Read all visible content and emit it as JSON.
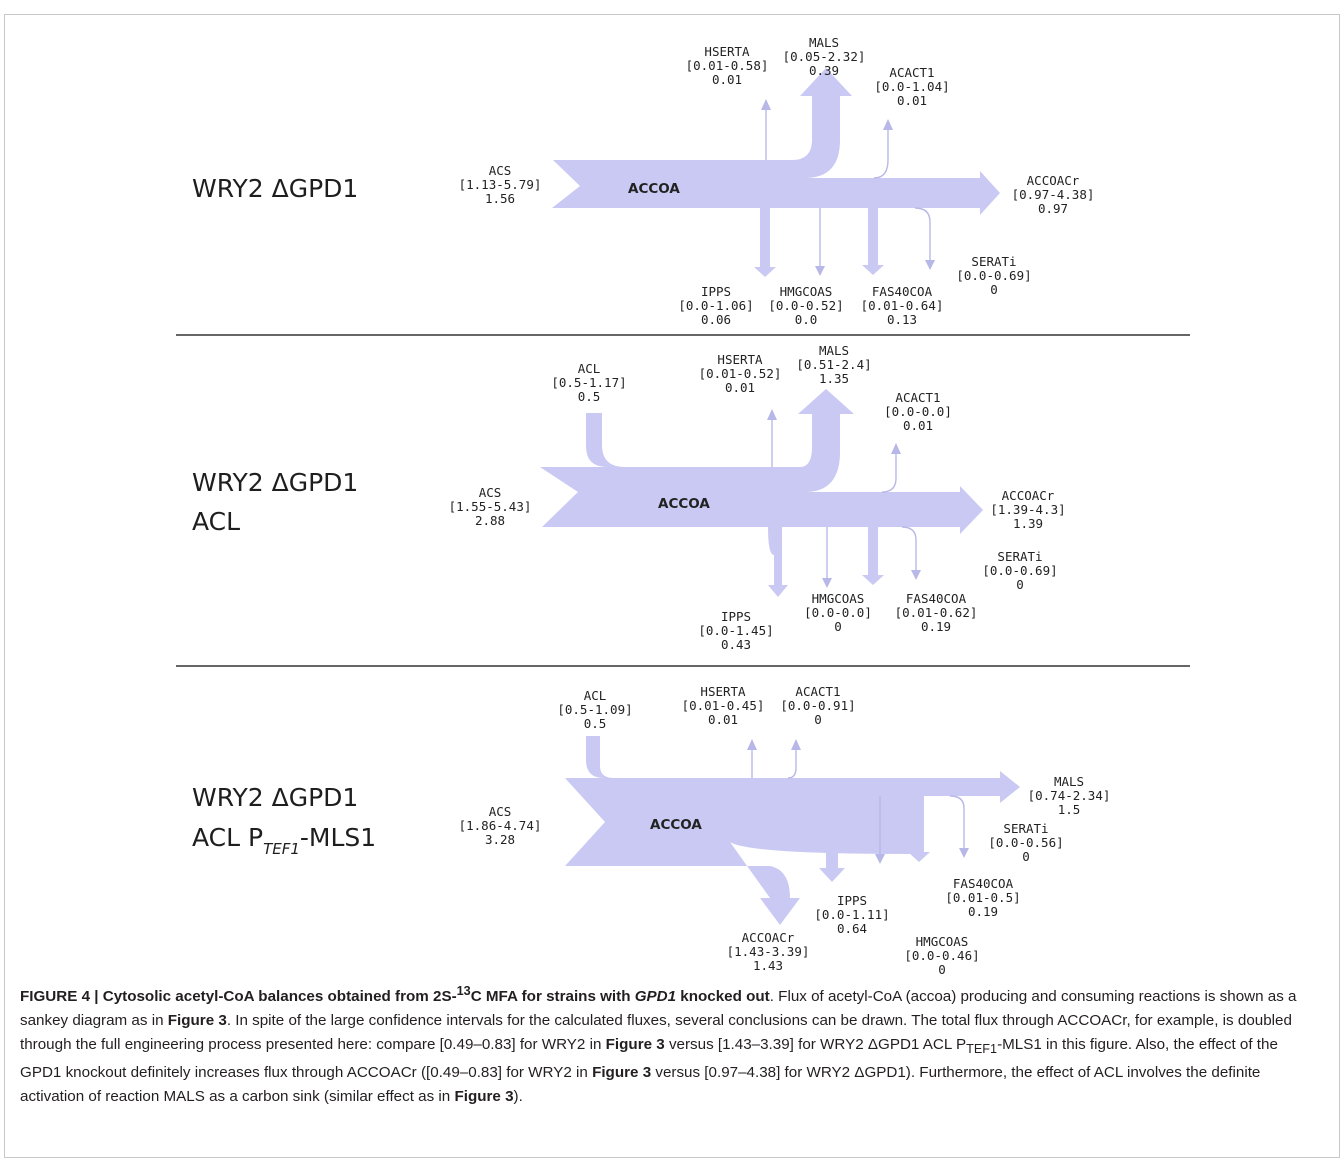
{
  "colors": {
    "flow": "#c9c9f3",
    "stroke": "#b8b8e8",
    "text": "#222222",
    "divider": "#333333"
  },
  "panels": [
    {
      "strain_line1": "WRY2 ΔGPD1",
      "strain_line2": "",
      "node": "ACCOA",
      "fluxes": [
        {
          "name": "ACS",
          "interval": "[1.13-5.79]",
          "value": "1.56"
        },
        {
          "name": "HSERTA",
          "interval": "[0.01-0.58]",
          "value": "0.01"
        },
        {
          "name": "MALS",
          "interval": "[0.05-2.32]",
          "value": "0.39"
        },
        {
          "name": "ACACT1",
          "interval": "[0.0-1.04]",
          "value": "0.01"
        },
        {
          "name": "ACCOACr",
          "interval": "[0.97-4.38]",
          "value": "0.97"
        },
        {
          "name": "IPPS",
          "interval": "[0.0-1.06]",
          "value": "0.06"
        },
        {
          "name": "HMGCOAS",
          "interval": "[0.0-0.52]",
          "value": "0.0"
        },
        {
          "name": "FAS40COA",
          "interval": "[0.01-0.64]",
          "value": "0.13"
        },
        {
          "name": "SERATi",
          "interval": "[0.0-0.69]",
          "value": "0"
        }
      ]
    },
    {
      "strain_line1": "WRY2 ΔGPD1",
      "strain_line2": "ACL",
      "node": "ACCOA",
      "fluxes": [
        {
          "name": "ACL",
          "interval": "[0.5-1.17]",
          "value": "0.5"
        },
        {
          "name": "ACS",
          "interval": "[1.55-5.43]",
          "value": "2.88"
        },
        {
          "name": "HSERTA",
          "interval": "[0.01-0.52]",
          "value": "0.01"
        },
        {
          "name": "MALS",
          "interval": "[0.51-2.4]",
          "value": "1.35"
        },
        {
          "name": "ACACT1",
          "interval": "[0.0-0.0]",
          "value": "0.01"
        },
        {
          "name": "ACCOACr",
          "interval": "[1.39-4.3]",
          "value": "1.39"
        },
        {
          "name": "SERATi",
          "interval": "[0.0-0.69]",
          "value": "0"
        },
        {
          "name": "HMGCOAS",
          "interval": "[0.0-0.0]",
          "value": "0"
        },
        {
          "name": "FAS40COA",
          "interval": "[0.01-0.62]",
          "value": "0.19"
        },
        {
          "name": "IPPS",
          "interval": "[0.0-1.45]",
          "value": "0.43"
        }
      ]
    },
    {
      "strain_line1": "WRY2 ΔGPD1",
      "strain_line2": "ACL P",
      "strain_sub": "TEF1",
      "strain_suffix": "-MLS1",
      "node": "ACCOA",
      "fluxes": [
        {
          "name": "ACL",
          "interval": "[0.5-1.09]",
          "value": "0.5"
        },
        {
          "name": "HSERTA",
          "interval": "[0.01-0.45]",
          "value": "0.01"
        },
        {
          "name": "ACACT1",
          "interval": "[0.0-0.91]",
          "value": "0"
        },
        {
          "name": "ACS",
          "interval": "[1.86-4.74]",
          "value": "3.28"
        },
        {
          "name": "MALS",
          "interval": "[0.74-2.34]",
          "value": "1.5"
        },
        {
          "name": "SERATi",
          "interval": "[0.0-0.56]",
          "value": "0"
        },
        {
          "name": "FAS40COA",
          "interval": "[0.01-0.5]",
          "value": "0.19"
        },
        {
          "name": "IPPS",
          "interval": "[0.0-1.11]",
          "value": "0.64"
        },
        {
          "name": "ACCOACr",
          "interval": "[1.43-3.39]",
          "value": "1.43"
        },
        {
          "name": "HMGCOAS",
          "interval": "[0.0-0.46]",
          "value": "0"
        }
      ]
    }
  ],
  "caption": {
    "label": "FIGURE 4 | Cytosolic acetyl-CoA balances obtained from 2S-",
    "label_sup": "13",
    "label_mid": "C MFA for strains with ",
    "label_italic": "GPD1",
    "label_end": " knocked out",
    "t1": ". Flux of acetyl-CoA (accoa) producing and consuming reactions is shown as a sankey diagram as in ",
    "fig3a": "Figure 3",
    "t2": ". In spite of the large confidence intervals for the calculated fluxes, several conclusions can be drawn. The total flux through ACCOACr, for example, is doubled through the full engineering process presented here: compare [0.49–0.83] for WRY2 in ",
    "fig3b": "Figure 3",
    "t3": " versus [1.43–3.39] for WRY2 ΔGPD1 ACL P",
    "t3_sub": "TEF1",
    "t4": "-MLS1 in this figure. Also, the effect of the GPD1 knockout definitely increases flux through ACCOACr ([0.49–0.83] for WRY2 in ",
    "fig3c": "Figure 3",
    "t5": " versus [0.97–4.38] for WRY2 ΔGPD1). Furthermore, the effect of ACL involves the definite activation of reaction MALS as a carbon sink (similar effect as in ",
    "fig3d": "Figure 3",
    "t6": ")."
  }
}
